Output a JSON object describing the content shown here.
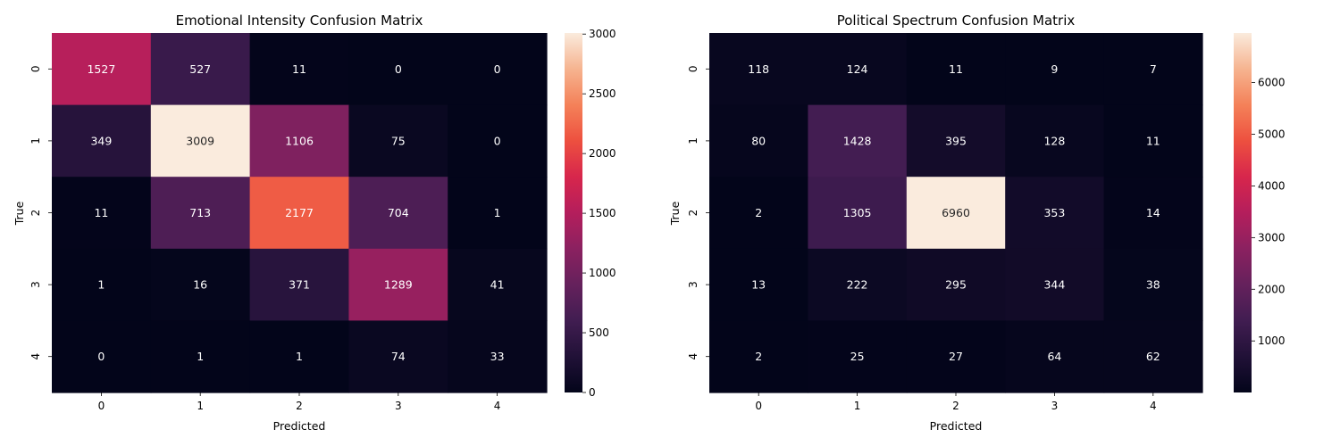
{
  "chart_data": [
    {
      "type": "heatmap",
      "title": "Emotional Intensity Confusion Matrix",
      "xlabel": "Predicted",
      "ylabel": "True",
      "x_categories": [
        "0",
        "1",
        "2",
        "3",
        "4"
      ],
      "y_categories": [
        "0",
        "1",
        "2",
        "3",
        "4"
      ],
      "values": [
        [
          1527,
          527,
          11,
          0,
          0
        ],
        [
          349,
          3009,
          1106,
          75,
          0
        ],
        [
          11,
          713,
          2177,
          704,
          1
        ],
        [
          1,
          16,
          371,
          1289,
          41
        ],
        [
          0,
          1,
          1,
          74,
          33
        ]
      ],
      "colorbar": {
        "min": 0,
        "max": 3009,
        "ticks": [
          0,
          500,
          1000,
          1500,
          2000,
          2500,
          3000
        ]
      },
      "colormap": "rocket"
    },
    {
      "type": "heatmap",
      "title": "Political Spectrum Confusion Matrix",
      "xlabel": "Predicted",
      "ylabel": "True",
      "x_categories": [
        "0",
        "1",
        "2",
        "3",
        "4"
      ],
      "y_categories": [
        "0",
        "1",
        "2",
        "3",
        "4"
      ],
      "values": [
        [
          118,
          124,
          11,
          9,
          7
        ],
        [
          80,
          1428,
          395,
          128,
          11
        ],
        [
          2,
          1305,
          6960,
          353,
          14
        ],
        [
          13,
          222,
          295,
          344,
          38
        ],
        [
          2,
          25,
          27,
          64,
          62
        ]
      ],
      "colorbar": {
        "min": 2,
        "max": 6960,
        "ticks": [
          1000,
          2000,
          3000,
          4000,
          5000,
          6000
        ]
      },
      "colormap": "rocket"
    }
  ]
}
